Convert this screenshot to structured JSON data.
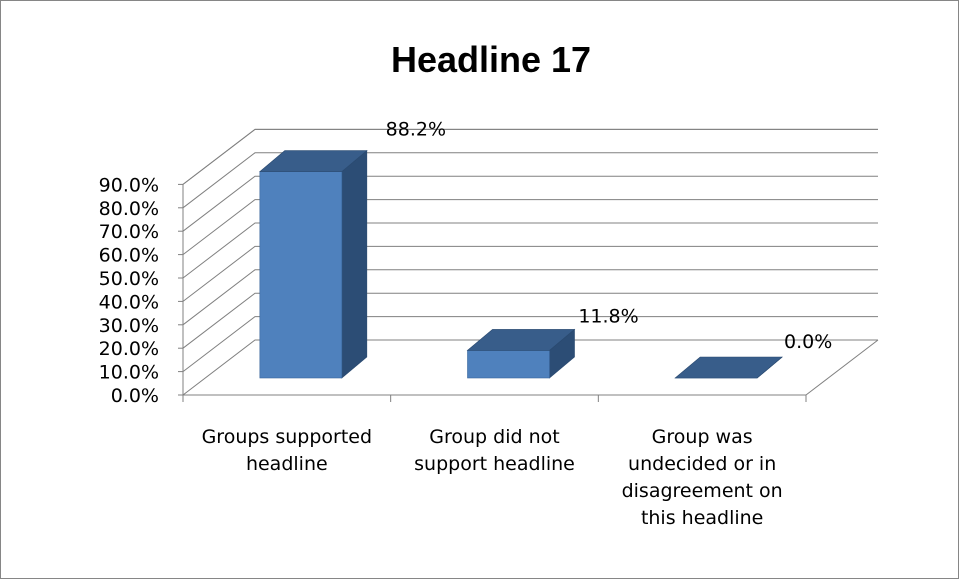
{
  "chart_data": {
    "type": "bar",
    "title": "Headline 17",
    "categories": [
      [
        "Groups supported",
        "headline"
      ],
      [
        "Group did not",
        "support headline"
      ],
      [
        "Group was",
        "undecided or in",
        "disagreement on",
        "this headline"
      ]
    ],
    "values": [
      88.2,
      11.8,
      0.0
    ],
    "data_labels": [
      "88.2%",
      "11.8%",
      "0.0%"
    ],
    "y_ticks": [
      "0.0%",
      "10.0%",
      "20.0%",
      "30.0%",
      "40.0%",
      "50.0%",
      "60.0%",
      "70.0%",
      "80.0%",
      "90.0%"
    ],
    "ylim": [
      0,
      90
    ],
    "grid": true,
    "legend": "none",
    "colors": {
      "front": "#4F81BD",
      "top": "#385D8A",
      "side": "#2C4D75",
      "grid": "#808080"
    }
  }
}
